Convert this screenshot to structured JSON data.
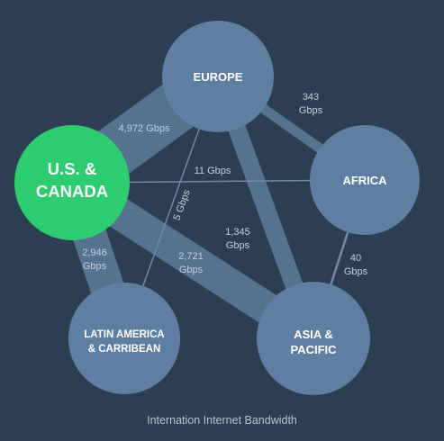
{
  "colors": {
    "background": "#2e3e52",
    "region_node": "#5e7ea2",
    "highlight_node": "#2ecc71",
    "link": "#55728f",
    "label_text": "#c3cfdc"
  },
  "nodes": {
    "us_canada": {
      "line1": "U.S. &",
      "line2": "CANADA"
    },
    "europe": {
      "line1": "EUROPE"
    },
    "africa": {
      "line1": "AFRICA"
    },
    "latin_america": {
      "line1": "LATIN AMERICA",
      "line2": "& CARRIBEAN"
    },
    "asia_pacific": {
      "line1": "ASIA &",
      "line2": "PACIFIC"
    }
  },
  "links": {
    "us_europe": {
      "line1": "4,972 Gbps",
      "value_gbps": 4972
    },
    "europe_africa": {
      "line1": "343",
      "line2": "Gbps",
      "value_gbps": 343
    },
    "us_africa": {
      "line1": "11 Gbps",
      "value_gbps": 11
    },
    "europe_latam": {
      "line1": "5 Gbps",
      "value_gbps": 5
    },
    "europe_asia": {
      "line1": "1,345",
      "line2": "Gbps",
      "value_gbps": 1345
    },
    "us_latam": {
      "line1": "2,946",
      "line2": "Gbps",
      "value_gbps": 2946
    },
    "us_asia": {
      "line1": "2,721",
      "line2": "Gbps",
      "value_gbps": 2721
    },
    "africa_asia": {
      "line1": "40",
      "line2": "Gbps",
      "value_gbps": 40
    }
  },
  "caption": "Internation Internet Bandwidth"
}
